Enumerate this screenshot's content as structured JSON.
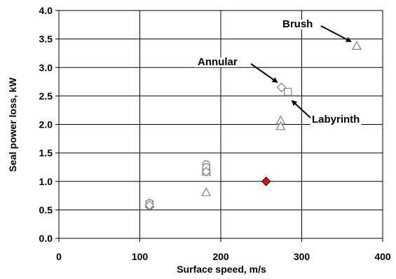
{
  "chart_data": {
    "type": "scatter",
    "title": "",
    "xlabel": "Surface speed, m/s",
    "ylabel": "Seal power loss, kW",
    "xlim": [
      0,
      400
    ],
    "ylim": [
      0.0,
      4.0
    ],
    "x_ticks": [
      "0",
      "100",
      "200",
      "300",
      "400"
    ],
    "y_ticks": [
      "0.0",
      "0.5",
      "1.0",
      "1.5",
      "2.0",
      "2.5",
      "3.0",
      "3.5",
      "4.0"
    ],
    "grid": true,
    "series": [
      {
        "marker": "triangle",
        "color": "#808080",
        "points": [
          [
            112,
            0.61
          ],
          [
            182,
            1.17
          ],
          [
            182,
            0.81
          ],
          [
            274,
            2.07
          ],
          [
            274,
            1.97
          ],
          [
            368,
            3.38
          ]
        ]
      },
      {
        "marker": "square",
        "color": "#808080",
        "points": [
          [
            112,
            0.6
          ],
          [
            182,
            1.2
          ],
          [
            283,
            2.57
          ]
        ]
      },
      {
        "marker": "circle",
        "color": "#808080",
        "points": [
          [
            112,
            0.62
          ],
          [
            112,
            0.57
          ],
          [
            182,
            1.3
          ],
          [
            182,
            1.25
          ]
        ]
      },
      {
        "marker": "diamond",
        "color": "#808080",
        "points": [
          [
            112,
            0.58
          ],
          [
            182,
            1.17
          ],
          [
            275,
            2.65
          ]
        ]
      },
      {
        "marker": "diamond-filled",
        "color": "#ff0000",
        "points": [
          [
            256,
            1.0
          ]
        ]
      }
    ],
    "annotations": [
      {
        "text": "Brush",
        "at": [
          368,
          3.38
        ]
      },
      {
        "text": "Annular",
        "at": [
          275,
          2.65
        ]
      },
      {
        "text": "Labyrinth",
        "at": [
          283,
          2.57
        ]
      }
    ]
  }
}
